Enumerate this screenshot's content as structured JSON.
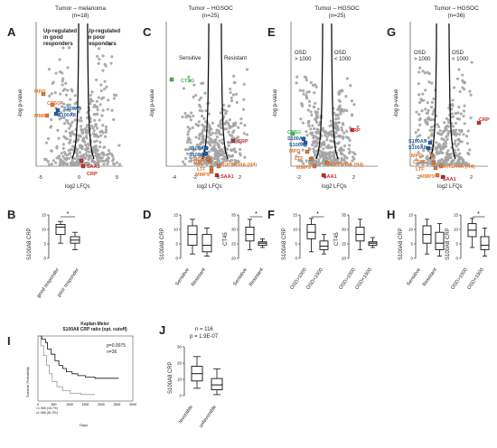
{
  "panels": {
    "A": {
      "letter": "A",
      "title": "Tumor – melanoma\n(n=18)",
      "left_note": "Up-regulated\nin good\nresponders",
      "right_note": "Up-regulated\nin poor\nresponders",
      "xlabel": "log2 LFQs",
      "ylabel": "-log p-value",
      "xticks": [
        "-5",
        "0",
        "5"
      ],
      "yticks": [
        "0",
        "1",
        "2",
        "3"
      ],
      "labels": [
        {
          "t": "MPO",
          "c": "orange"
        },
        {
          "t": "CTSG",
          "c": "orange"
        },
        {
          "t": "S100A9",
          "c": "blue"
        },
        {
          "t": "MMP9",
          "c": "orange"
        },
        {
          "t": "S100A8",
          "c": "blue"
        },
        {
          "t": "SAA1",
          "c": "red"
        },
        {
          "t": "CRP",
          "c": "red"
        }
      ]
    },
    "C": {
      "letter": "C",
      "title": "Tumor – HGSOC\n(n=25)",
      "left_note": "Sensitive",
      "right_note": "Resistant",
      "xlabel": "log2 LFQs",
      "ylabel": "-log p-value",
      "xticks": [
        "-4",
        "-2",
        "0",
        "2"
      ],
      "yticks": [
        "0",
        "1",
        "2",
        "3"
      ],
      "labels": [
        {
          "t": "CTSG",
          "c": "green"
        },
        {
          "t": "CRP",
          "c": "red"
        },
        {
          "t": "S100A9",
          "c": "blue"
        },
        {
          "t": "S100A8",
          "c": "blue"
        },
        {
          "t": "MPO",
          "c": "orange"
        },
        {
          "t": "CTSG",
          "c": "orange"
        },
        {
          "t": "LTF",
          "c": "orange"
        },
        {
          "t": "MMP9",
          "c": "orange"
        },
        {
          "t": "IGHT1H4A (H4)",
          "c": "orange"
        },
        {
          "t": "SAA1",
          "c": "red"
        }
      ]
    },
    "E": {
      "letter": "E",
      "title": "Tumor – HGSOC\n(n=25)",
      "left_note": "OSD\n> 1000",
      "right_note": "OSD\n< 1000",
      "xlabel": "log2 LFQs",
      "ylabel": "-log p-value",
      "xticks": [
        "-2",
        "0",
        "2"
      ],
      "yticks": [
        "0",
        "1",
        "2",
        "3"
      ],
      "labels": [
        {
          "t": "CTSG",
          "c": "green"
        },
        {
          "t": "S100A9",
          "c": "blue"
        },
        {
          "t": "S100A8",
          "c": "blue"
        },
        {
          "t": "CRP",
          "c": "red"
        },
        {
          "t": "MPO",
          "c": "orange"
        },
        {
          "t": "LTF",
          "c": "orange"
        },
        {
          "t": "MMP9",
          "c": "orange"
        },
        {
          "t": "IGHT1H4A (H4)",
          "c": "orange"
        },
        {
          "t": "SAA1",
          "c": "red"
        }
      ]
    },
    "G": {
      "letter": "G",
      "title": "Tumor – HGSOC\n(n=36)",
      "left_note": "OSD\n> 1000",
      "right_note": "OSD\n< 1000",
      "xlabel": "log2 LFQs",
      "ylabel": "-log p-value",
      "xticks": [
        "-2",
        "0",
        "2"
      ],
      "yticks": [
        "0",
        "1",
        "2",
        "3"
      ],
      "labels": [
        {
          "t": "CRP",
          "c": "red"
        },
        {
          "t": "S100A9",
          "c": "blue"
        },
        {
          "t": "S100A8",
          "c": "blue"
        },
        {
          "t": "MPO",
          "c": "orange"
        },
        {
          "t": "CTSG",
          "c": "orange"
        },
        {
          "t": "LTF",
          "c": "orange"
        },
        {
          "t": "IGHT1H4A (H4)",
          "c": "orange"
        },
        {
          "t": "MMP9",
          "c": "orange"
        },
        {
          "t": "SAA1",
          "c": "red"
        }
      ]
    },
    "B": {
      "letter": "B",
      "ylabel": "S100A8 CRP",
      "xcats": [
        "good responder",
        "poor responder"
      ],
      "yticks": [
        "0",
        "5",
        "10",
        "15"
      ],
      "sig": "*"
    },
    "D": {
      "letter": "D",
      "ylabel1": "S100A8 CRP",
      "xcats1": [
        "Sensitive",
        "Resistant"
      ],
      "yticks1": [
        "0",
        "5",
        "10",
        "15"
      ],
      "ylabel2": "CT45",
      "xcats2": [
        "Sensitive",
        "Resistant"
      ],
      "yticks2": [
        "20",
        "25",
        "30",
        "35"
      ],
      "sig": "*"
    },
    "F": {
      "letter": "F",
      "ylabel1": "S100A8 CRP",
      "xcats1": [
        "OSD>1000",
        "OSD<1000"
      ],
      "yticks1": [
        "0",
        "5",
        "10",
        "15"
      ],
      "ylabel2": "CT45",
      "xcats2": [
        "OSD>1000",
        "OSD<1000"
      ],
      "yticks2": [
        "20",
        "25",
        "30",
        "35"
      ],
      "sig": "*"
    },
    "H": {
      "letter": "H",
      "ylabel1": "S100A8 CRP",
      "xcats1": [
        "Sensitive",
        "Resistant"
      ],
      "yticks1": [
        "0",
        "5",
        "10",
        "15"
      ],
      "ylabel2": "S100A8 CRP",
      "xcats2": [
        "OSD>1000",
        "OSD<1000"
      ],
      "yticks2": [
        "0",
        "5",
        "10",
        "15"
      ],
      "sig": "*"
    },
    "I": {
      "letter": "I",
      "title": "Kaplan-Meier\nS100A8 CRP ratio (opt. cutoff)",
      "pval": "p=0.0075",
      "n": "n=36",
      "ylabel": "Survival Probability",
      "xlabel": "Days",
      "xticks": [
        "0",
        "500",
        "1000",
        "1500",
        "2000",
        "2500",
        "3000"
      ],
      "legend": [
        "<1.066 (18.7%)",
        "≥1.066 (81.3%)"
      ]
    },
    "J": {
      "letter": "J",
      "n": "n = 116",
      "p": "p = 1.9E-07",
      "ylabel": "S100A8 CRP",
      "xcats": [
        "favorable",
        "unfavorable"
      ],
      "yticks": [
        "0",
        "10",
        "20",
        "30"
      ]
    }
  },
  "colors": {
    "orange": "#e8742a",
    "blue": "#1f5fa8",
    "red": "#d42a2a",
    "green": "#3ec43e",
    "gray": "#a8a8a8"
  }
}
